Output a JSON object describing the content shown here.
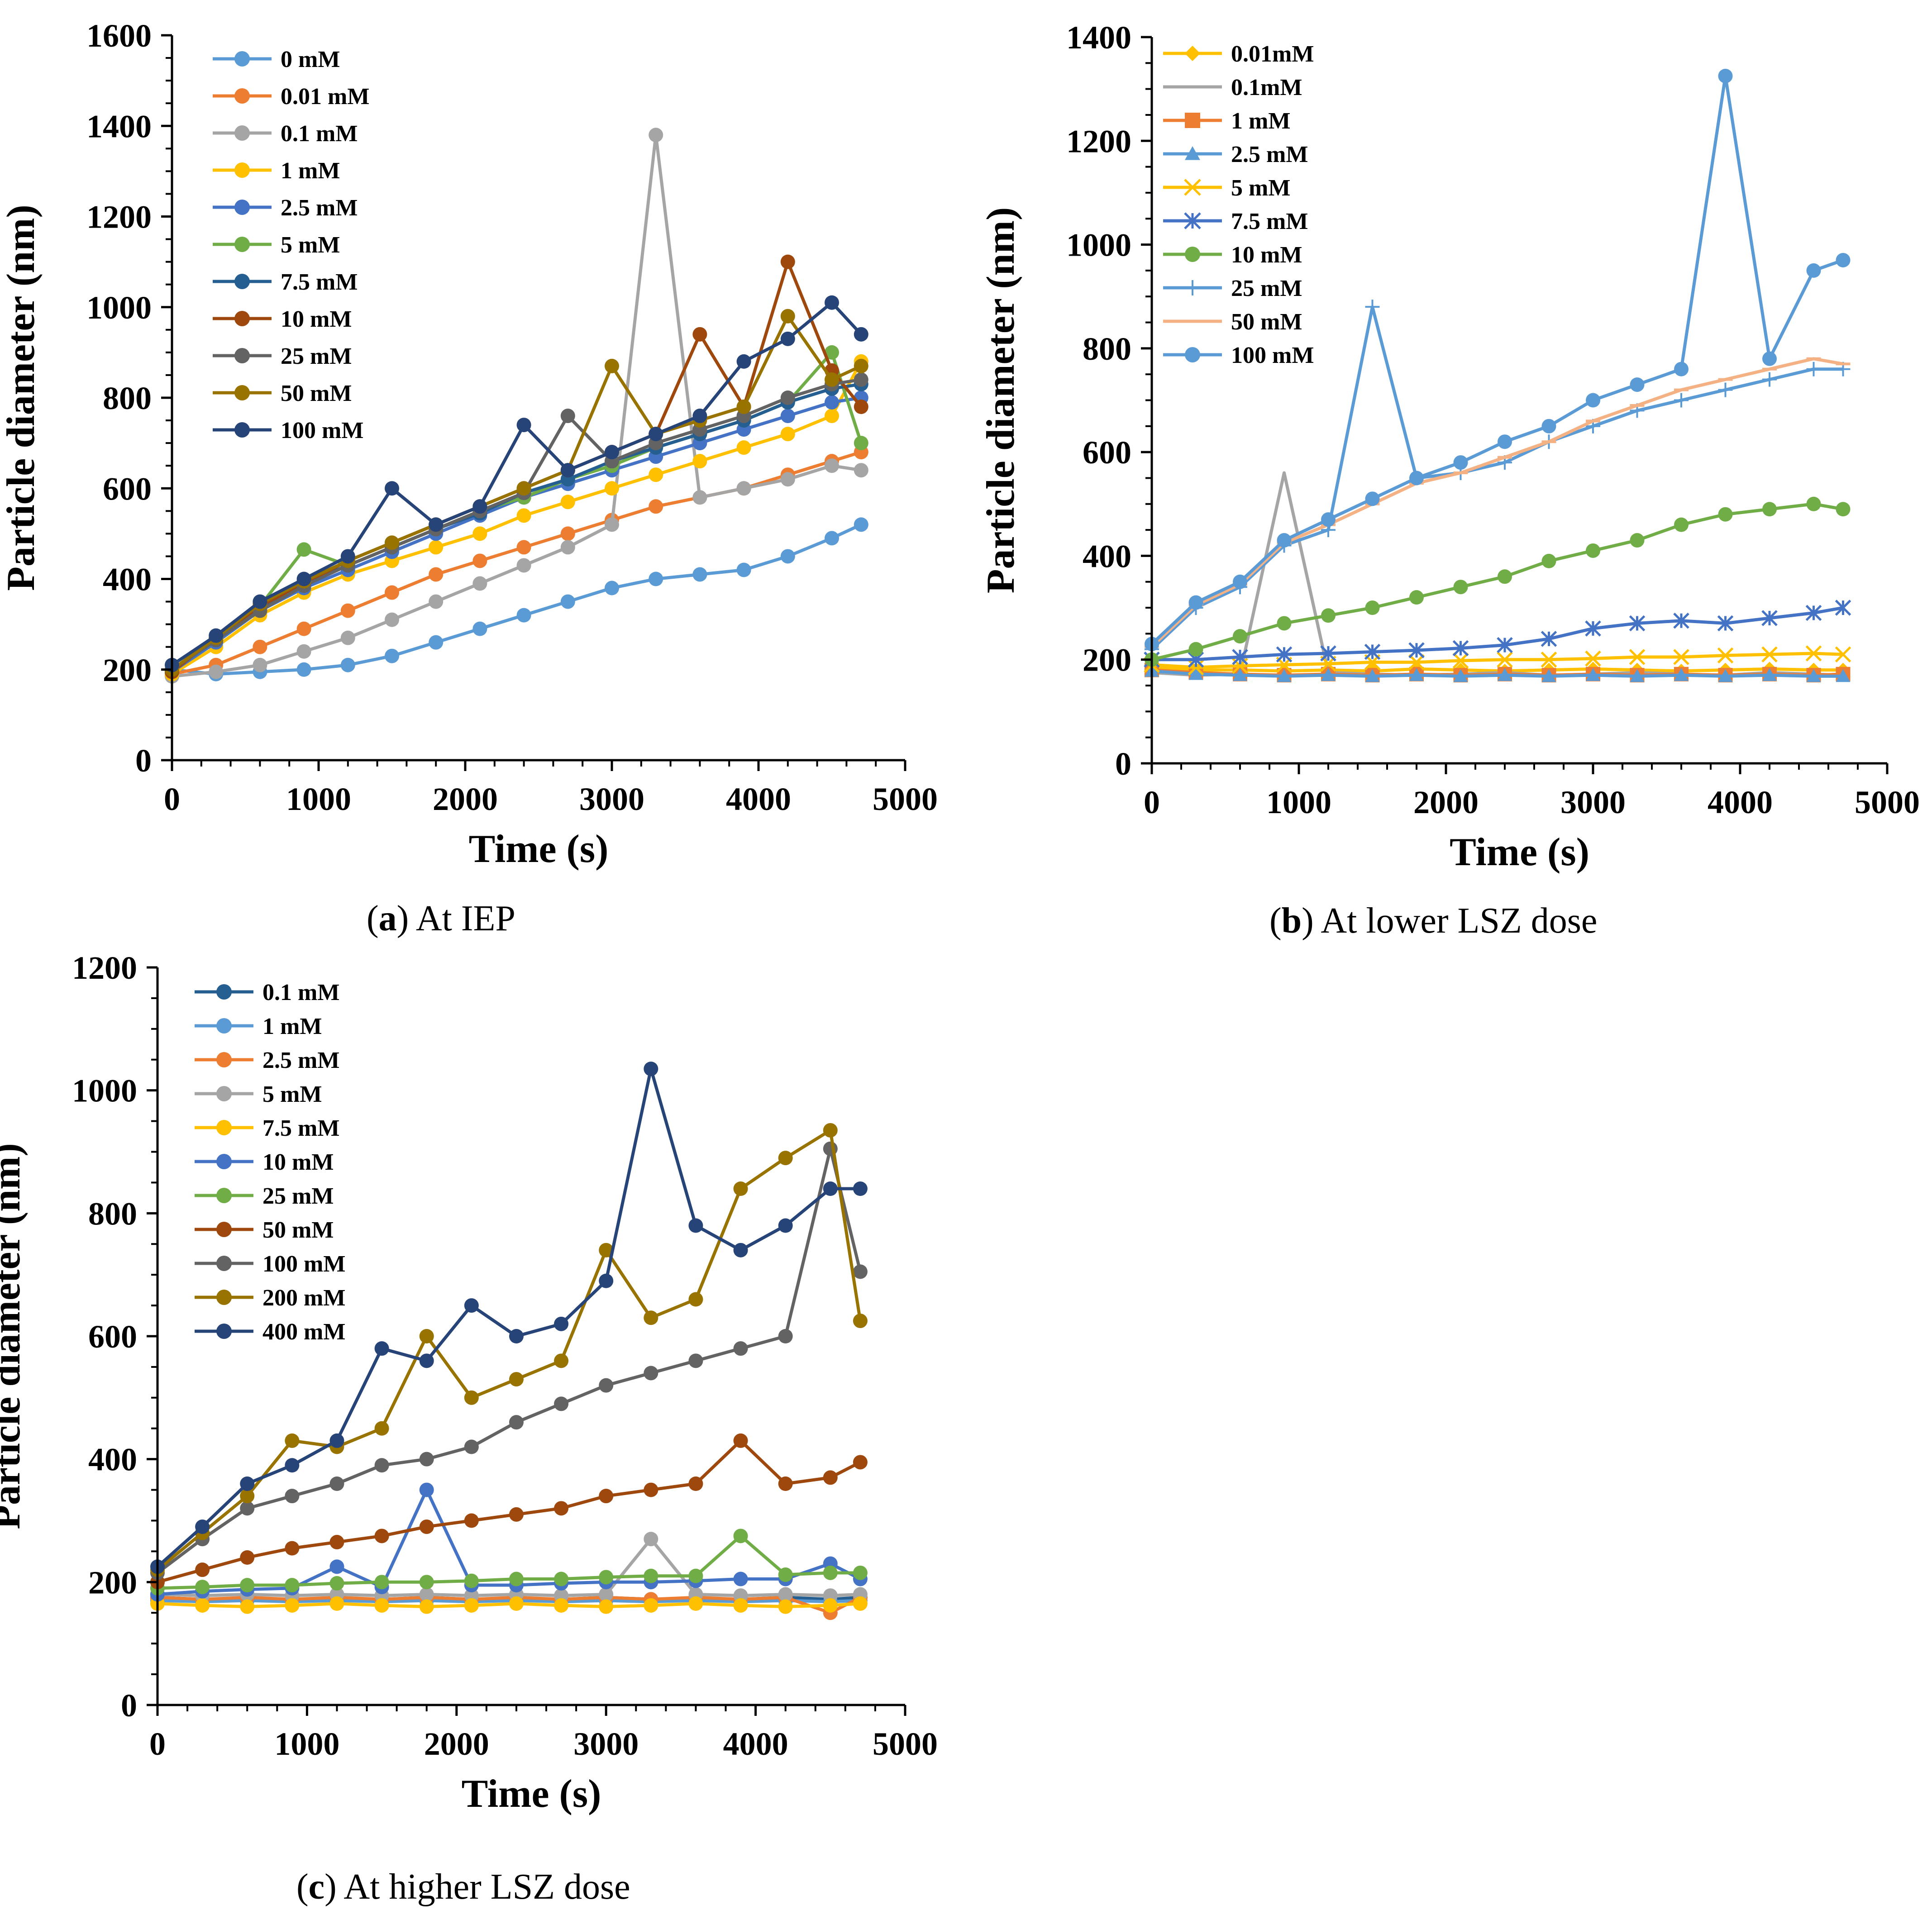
{
  "captions": [
    {
      "letter": "a",
      "text": " At IEP"
    },
    {
      "letter": "b",
      "text": " At lower LSZ dose"
    },
    {
      "letter": "c",
      "text": " At higher LSZ dose"
    }
  ],
  "chart_data": [
    {
      "id": "a",
      "type": "line",
      "title": "",
      "xlabel": "Time (s)",
      "ylabel": "Particle diameter (nm)",
      "xlim": [
        0,
        5000
      ],
      "ylim": [
        0,
        1600
      ],
      "xticks": [
        0,
        1000,
        2000,
        3000,
        4000,
        5000
      ],
      "yticks": [
        0,
        200,
        400,
        600,
        800,
        1000,
        1200,
        1400,
        1600
      ],
      "legend_position": "top-left",
      "x": [
        0,
        300,
        600,
        900,
        1200,
        1500,
        1800,
        2100,
        2400,
        2700,
        3000,
        3300,
        3600,
        3900,
        4200,
        4500,
        4700
      ],
      "series": [
        {
          "name": "0 mM",
          "color": "#5b9bd5",
          "marker": "circle",
          "values": [
            200,
            190,
            195,
            200,
            210,
            230,
            260,
            290,
            320,
            350,
            380,
            400,
            410,
            420,
            450,
            490,
            520
          ]
        },
        {
          "name": "0.01 mM",
          "color": "#ed7d31",
          "marker": "circle",
          "values": [
            190,
            210,
            250,
            290,
            330,
            370,
            410,
            440,
            470,
            500,
            530,
            560,
            580,
            600,
            630,
            660,
            680
          ]
        },
        {
          "name": "0.1 mM",
          "color": "#a5a5a5",
          "marker": "circle",
          "values": [
            185,
            195,
            210,
            240,
            270,
            310,
            350,
            390,
            430,
            470,
            520,
            1380,
            580,
            600,
            620,
            650,
            640
          ]
        },
        {
          "name": "1 mM",
          "color": "#ffc000",
          "marker": "circle",
          "values": [
            190,
            250,
            320,
            370,
            410,
            440,
            470,
            500,
            540,
            570,
            600,
            630,
            660,
            690,
            720,
            760,
            880
          ]
        },
        {
          "name": "2.5 mM",
          "color": "#4472c4",
          "marker": "circle",
          "values": [
            195,
            260,
            330,
            380,
            420,
            460,
            500,
            540,
            580,
            610,
            640,
            670,
            700,
            730,
            760,
            790,
            800
          ]
        },
        {
          "name": "5 mM",
          "color": "#70ad47",
          "marker": "circle",
          "values": [
            200,
            270,
            340,
            465,
            430,
            470,
            510,
            550,
            580,
            620,
            650,
            690,
            720,
            750,
            790,
            900,
            700
          ]
        },
        {
          "name": "7.5 mM",
          "color": "#255e91",
          "marker": "circle",
          "values": [
            200,
            265,
            335,
            390,
            430,
            470,
            510,
            545,
            590,
            620,
            660,
            690,
            720,
            750,
            790,
            820,
            830
          ]
        },
        {
          "name": "10 mM",
          "color": "#9e480e",
          "marker": "circle",
          "values": [
            195,
            270,
            340,
            390,
            440,
            480,
            520,
            560,
            600,
            640,
            680,
            720,
            940,
            780,
            1100,
            860,
            780
          ]
        },
        {
          "name": "25 mM",
          "color": "#636363",
          "marker": "circle",
          "values": [
            200,
            265,
            330,
            385,
            430,
            470,
            510,
            550,
            590,
            760,
            660,
            700,
            730,
            760,
            800,
            830,
            840
          ]
        },
        {
          "name": "50 mM",
          "color": "#997300",
          "marker": "circle",
          "values": [
            200,
            270,
            345,
            395,
            440,
            480,
            520,
            560,
            600,
            640,
            870,
            720,
            750,
            780,
            980,
            840,
            870
          ]
        },
        {
          "name": "100 mM",
          "color": "#264478",
          "marker": "circle",
          "values": [
            210,
            275,
            350,
            400,
            450,
            600,
            520,
            560,
            740,
            640,
            680,
            720,
            760,
            880,
            930,
            1010,
            940
          ]
        }
      ]
    },
    {
      "id": "b",
      "type": "line",
      "title": "",
      "xlabel": "Time (s)",
      "ylabel": "Particle diameter (nm)",
      "xlim": [
        0,
        5000
      ],
      "ylim": [
        0,
        1400
      ],
      "xticks": [
        0,
        1000,
        2000,
        3000,
        4000,
        5000
      ],
      "yticks": [
        0,
        200,
        400,
        600,
        800,
        1000,
        1200,
        1400
      ],
      "legend_position": "top-left",
      "x": [
        0,
        300,
        600,
        900,
        1200,
        1500,
        1800,
        2100,
        2400,
        2700,
        3000,
        3300,
        3600,
        3900,
        4200,
        4500,
        4700
      ],
      "series": [
        {
          "name": "0.01mM",
          "color": "#ffc000",
          "marker": "diamond",
          "values": [
            185,
            180,
            180,
            178,
            180,
            178,
            182,
            180,
            178,
            180,
            182,
            180,
            178,
            180,
            182,
            180,
            180
          ]
        },
        {
          "name": "0.1mM",
          "color": "#a5a5a5",
          "marker": "none",
          "values": [
            175,
            170,
            172,
            560,
            175,
            172,
            170,
            172,
            175,
            170,
            172,
            175,
            172,
            170,
            175,
            172,
            170
          ]
        },
        {
          "name": "1 mM",
          "color": "#ed7d31",
          "marker": "square",
          "values": [
            180,
            175,
            172,
            170,
            172,
            170,
            172,
            170,
            172,
            170,
            172,
            170,
            172,
            170,
            172,
            170,
            172
          ]
        },
        {
          "name": "2.5 mM",
          "color": "#5b9bd5",
          "marker": "triangle",
          "values": [
            178,
            172,
            170,
            168,
            170,
            168,
            170,
            168,
            170,
            168,
            170,
            168,
            170,
            168,
            170,
            168,
            168
          ]
        },
        {
          "name": "5 mM",
          "color": "#ffc000",
          "marker": "x",
          "values": [
            190,
            185,
            188,
            190,
            192,
            195,
            195,
            198,
            200,
            200,
            202,
            205,
            205,
            208,
            210,
            212,
            210
          ]
        },
        {
          "name": "7.5 mM",
          "color": "#4472c4",
          "marker": "star",
          "values": [
            200,
            200,
            205,
            210,
            212,
            215,
            218,
            222,
            228,
            240,
            260,
            270,
            275,
            270,
            280,
            290,
            300
          ]
        },
        {
          "name": "10 mM",
          "color": "#70ad47",
          "marker": "circle",
          "values": [
            200,
            220,
            245,
            270,
            285,
            300,
            320,
            340,
            360,
            390,
            410,
            430,
            460,
            480,
            490,
            500,
            490
          ]
        },
        {
          "name": "25 mM",
          "color": "#5b9bd5",
          "marker": "plus",
          "values": [
            220,
            300,
            340,
            420,
            450,
            880,
            550,
            560,
            580,
            620,
            650,
            680,
            700,
            720,
            740,
            760,
            760
          ]
        },
        {
          "name": "50 mM",
          "color": "#f4b183",
          "marker": "dash",
          "values": [
            225,
            305,
            345,
            425,
            460,
            500,
            540,
            560,
            590,
            620,
            660,
            690,
            720,
            740,
            760,
            780,
            770
          ]
        },
        {
          "name": "100 mM",
          "color": "#5b9bd5",
          "marker": "circle",
          "values": [
            230,
            310,
            350,
            430,
            470,
            510,
            550,
            580,
            620,
            650,
            700,
            730,
            760,
            1325,
            780,
            950,
            970
          ]
        }
      ]
    },
    {
      "id": "c",
      "type": "line",
      "title": "",
      "xlabel": "Time (s)",
      "ylabel": "Particle diameter (nm)",
      "xlim": [
        0,
        5000
      ],
      "ylim": [
        0,
        1200
      ],
      "xticks": [
        0,
        1000,
        2000,
        3000,
        4000,
        5000
      ],
      "yticks": [
        0,
        200,
        400,
        600,
        800,
        1000,
        1200
      ],
      "legend_position": "top-left",
      "x": [
        0,
        300,
        600,
        900,
        1200,
        1500,
        1800,
        2100,
        2400,
        2700,
        3000,
        3300,
        3600,
        3900,
        4200,
        4500,
        4700
      ],
      "series": [
        {
          "name": "0.1 mM",
          "color": "#255e91",
          "marker": "circle",
          "values": [
            175,
            172,
            170,
            172,
            170,
            172,
            175,
            172,
            170,
            172,
            175,
            172,
            170,
            172,
            175,
            172,
            175
          ]
        },
        {
          "name": "1 mM",
          "color": "#5b9bd5",
          "marker": "circle",
          "values": [
            170,
            168,
            170,
            168,
            170,
            168,
            170,
            168,
            170,
            168,
            170,
            168,
            170,
            168,
            170,
            168,
            170
          ]
        },
        {
          "name": "2.5 mM",
          "color": "#ed7d31",
          "marker": "circle",
          "values": [
            175,
            172,
            175,
            172,
            175,
            172,
            175,
            172,
            175,
            172,
            175,
            172,
            175,
            172,
            175,
            150,
            175
          ]
        },
        {
          "name": "5 mM",
          "color": "#a5a5a5",
          "marker": "circle",
          "values": [
            180,
            178,
            180,
            178,
            180,
            178,
            180,
            178,
            180,
            178,
            180,
            270,
            180,
            178,
            180,
            178,
            180
          ]
        },
        {
          "name": "7.5 mM",
          "color": "#ffc000",
          "marker": "circle",
          "values": [
            165,
            162,
            160,
            162,
            165,
            162,
            160,
            162,
            165,
            162,
            160,
            162,
            165,
            162,
            160,
            162,
            165
          ]
        },
        {
          "name": "10 mM",
          "color": "#4472c4",
          "marker": "circle",
          "values": [
            180,
            185,
            188,
            190,
            225,
            192,
            350,
            195,
            195,
            198,
            200,
            200,
            202,
            205,
            205,
            230,
            205
          ]
        },
        {
          "name": "25 mM",
          "color": "#70ad47",
          "marker": "circle",
          "values": [
            190,
            192,
            195,
            195,
            198,
            200,
            200,
            202,
            205,
            205,
            208,
            210,
            210,
            275,
            212,
            215,
            215
          ]
        },
        {
          "name": "50 mM",
          "color": "#9e480e",
          "marker": "circle",
          "values": [
            200,
            220,
            240,
            255,
            265,
            275,
            290,
            300,
            310,
            320,
            340,
            350,
            360,
            430,
            360,
            370,
            395
          ]
        },
        {
          "name": "100 mM",
          "color": "#636363",
          "marker": "circle",
          "values": [
            215,
            270,
            320,
            340,
            360,
            390,
            400,
            420,
            460,
            490,
            520,
            540,
            560,
            580,
            600,
            905,
            705
          ]
        },
        {
          "name": "200 mM",
          "color": "#997300",
          "marker": "circle",
          "values": [
            220,
            280,
            340,
            430,
            420,
            450,
            600,
            500,
            530,
            560,
            740,
            630,
            660,
            840,
            890,
            935,
            625
          ]
        },
        {
          "name": "400 mM",
          "color": "#264478",
          "marker": "circle",
          "values": [
            225,
            290,
            360,
            390,
            430,
            580,
            560,
            650,
            600,
            620,
            690,
            1035,
            780,
            740,
            780,
            840,
            840
          ]
        }
      ]
    }
  ]
}
